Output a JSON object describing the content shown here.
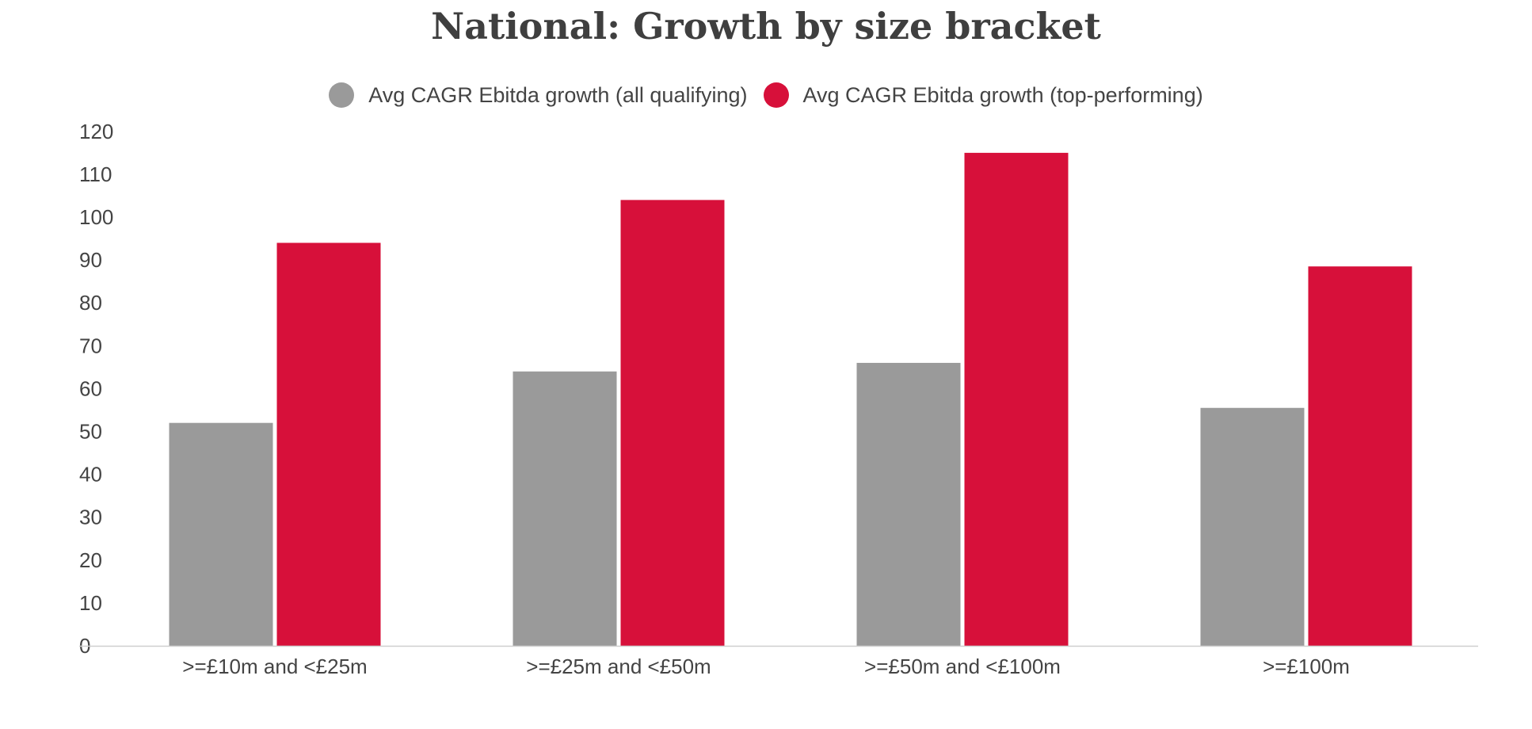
{
  "chart_data": {
    "type": "bar",
    "title": "National: Growth by size bracket",
    "categories": [
      ">=£10m and <£25m",
      ">=£25m and <£50m",
      ">=£50m and <£100m",
      ">=£100m"
    ],
    "series": [
      {
        "name": "Avg CAGR Ebitda growth (all qualifying)",
        "values": [
          52,
          64,
          66,
          55.5
        ],
        "color": "#9a9a9a"
      },
      {
        "name": "Avg CAGR Ebitda growth (top-performing)",
        "values": [
          94,
          104,
          115,
          88.5
        ],
        "color": "#d7103a"
      }
    ],
    "yticks": [
      "0",
      "10",
      "20",
      "30",
      "40",
      "50",
      "60",
      "70",
      "80",
      "90",
      "100",
      "110",
      "120"
    ],
    "ylim": [
      0,
      122
    ],
    "grid": false,
    "legend_position": "top-center"
  }
}
